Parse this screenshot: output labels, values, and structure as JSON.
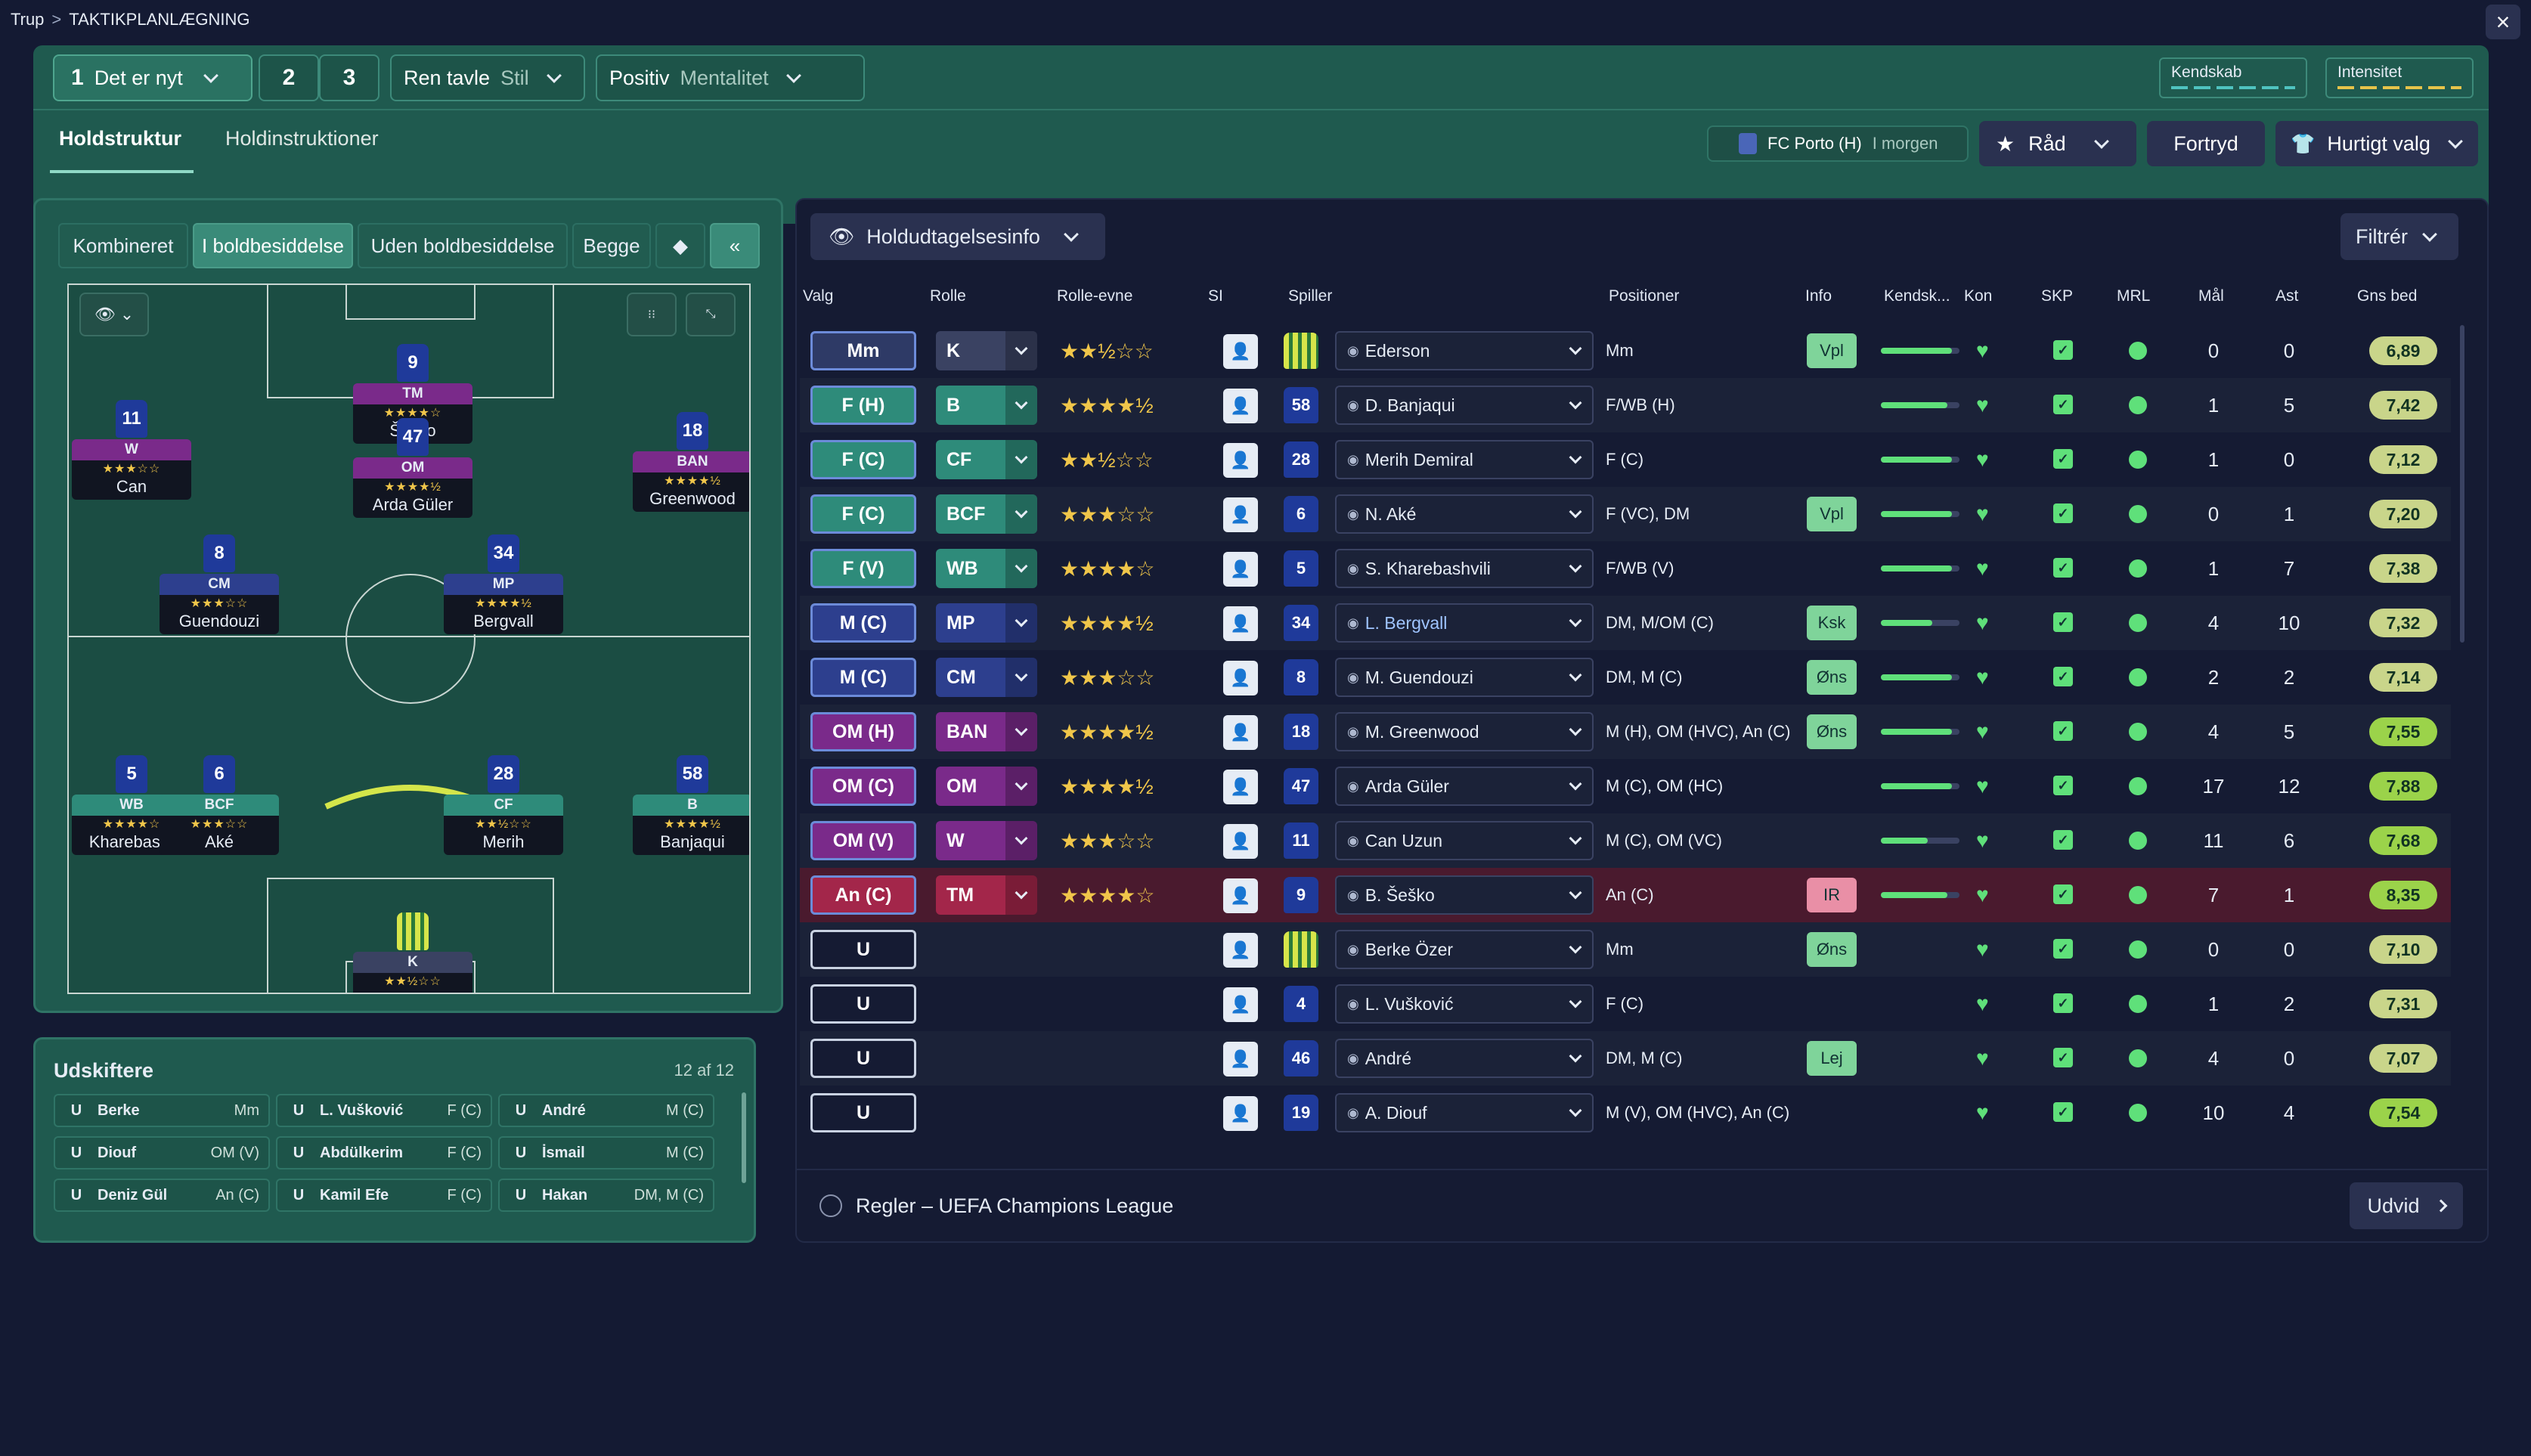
{
  "breadcrumb": {
    "root": "Trup",
    "current": "TAKTIKPLANLÆGNING"
  },
  "tactic": {
    "slot1_num": "1",
    "slot1_label": "Det er nyt",
    "slot2": "2",
    "slot3": "3",
    "style_value": "Ren tavle",
    "style_label": "Stil",
    "mentality_value": "Positiv",
    "mentality_label": "Mentalitet",
    "familiarity_label": "Kendskab",
    "intensity_label": "Intensitet",
    "colors": {
      "familiarity": "#4fc3c0",
      "intensity": "#e6c34a"
    }
  },
  "tabs": {
    "structure": "Holdstruktur",
    "instructions": "Holdinstruktioner"
  },
  "next_match": {
    "opponent": "FC Porto (H)",
    "when": "I morgen"
  },
  "actions": {
    "advice": "Råd",
    "undo": "Fortryd",
    "quick": "Hurtigt valg"
  },
  "view_modes": [
    "Kombineret",
    "I boldbesiddelse",
    "Uden boldbesiddelse",
    "Begge"
  ],
  "pitch_players": [
    {
      "num": "9",
      "role": "TM",
      "stars": "★★★★☆",
      "name": "Šeško",
      "color": "#7a2a8a"
    },
    {
      "num": "11",
      "role": "W",
      "stars": "★★★☆☆",
      "name": "Can",
      "color": "#7a2a8a"
    },
    {
      "num": "47",
      "role": "OM",
      "stars": "★★★★½",
      "name": "Arda Güler",
      "color": "#7a2a8a"
    },
    {
      "num": "18",
      "role": "BAN",
      "stars": "★★★★½",
      "name": "Greenwood",
      "color": "#7a2a8a"
    },
    {
      "num": "8",
      "role": "CM",
      "stars": "★★★☆☆",
      "name": "Guendouzi",
      "color": "#2d3f8e"
    },
    {
      "num": "34",
      "role": "MP",
      "stars": "★★★★½",
      "name": "Bergvall",
      "color": "#2d3f8e"
    },
    {
      "num": "5",
      "role": "WB",
      "stars": "★★★★☆",
      "name": "Kharebas...",
      "color": "#2e8b7a"
    },
    {
      "num": "6",
      "role": "BCF",
      "stars": "★★★☆☆",
      "name": "Aké",
      "color": "#2e8b7a"
    },
    {
      "num": "28",
      "role": "CF",
      "stars": "★★½☆☆",
      "name": "Merih",
      "color": "#2e8b7a"
    },
    {
      "num": "58",
      "role": "B",
      "stars": "★★★★½",
      "name": "Banjaqui",
      "color": "#2e8b7a"
    },
    {
      "num": "",
      "role": "K",
      "stars": "★★½☆☆",
      "name": "Ederson",
      "color": "#3a4262"
    }
  ],
  "subs": {
    "title": "Udskiftere",
    "count": "12 af 12",
    "items": [
      {
        "pos": "U",
        "name": "Berke",
        "role": "Mm"
      },
      {
        "pos": "U",
        "name": "L. Vušković",
        "role": "F (C)"
      },
      {
        "pos": "U",
        "name": "André",
        "role": "M (C)"
      },
      {
        "pos": "U",
        "name": "Diouf",
        "role": "OM (V)"
      },
      {
        "pos": "U",
        "name": "Abdülkerim",
        "role": "F (C)"
      },
      {
        "pos": "U",
        "name": "İsmail",
        "role": "M (C)"
      },
      {
        "pos": "U",
        "name": "Deniz Gül",
        "role": "An (C)"
      },
      {
        "pos": "U",
        "name": "Kamil Efe",
        "role": "F (C)"
      },
      {
        "pos": "U",
        "name": "Hakan",
        "role": "DM, M (C)"
      }
    ]
  },
  "table": {
    "view_label": "Holdudtagelsesinfo",
    "filter_label": "Filtrér",
    "headers": [
      "Valg",
      "Rolle",
      "Rolle-evne",
      "SI",
      "Spiller",
      "Positioner",
      "Info",
      "Kendsk...",
      "Kon",
      "SKP",
      "MRL",
      "Mål",
      "Ast",
      "Gns bed"
    ],
    "rows": [
      {
        "pos": "Mm",
        "role": "K",
        "stars": "★★½☆☆",
        "num": "",
        "name": "Ederson",
        "positions": "Mm",
        "info": "Vpl",
        "fam": 0.9,
        "goals": "0",
        "assists": "0",
        "rating": "6,89",
        "pcol": "#2e3a66",
        "rcol": "#3a4262"
      },
      {
        "pos": "F (H)",
        "role": "B",
        "stars": "★★★★½",
        "num": "58",
        "name": "D. Banjaqui",
        "positions": "F/WB (H)",
        "info": "",
        "fam": 0.85,
        "goals": "1",
        "assists": "5",
        "rating": "7,42",
        "pcol": "#2e8b7a",
        "rcol": "#2e8b7a"
      },
      {
        "pos": "F (C)",
        "role": "CF",
        "stars": "★★½☆☆",
        "num": "28",
        "name": "Merih Demiral",
        "positions": "F (C)",
        "info": "",
        "fam": 0.9,
        "goals": "1",
        "assists": "0",
        "rating": "7,12",
        "pcol": "#2e8b7a",
        "rcol": "#2e8b7a"
      },
      {
        "pos": "F (C)",
        "role": "BCF",
        "stars": "★★★☆☆",
        "num": "6",
        "name": "N. Aké",
        "positions": "F (VC), DM",
        "info": "Vpl",
        "fam": 0.9,
        "goals": "0",
        "assists": "1",
        "rating": "7,20",
        "pcol": "#2e8b7a",
        "rcol": "#2e8b7a"
      },
      {
        "pos": "F (V)",
        "role": "WB",
        "stars": "★★★★☆",
        "num": "5",
        "name": "S. Kharebashvili",
        "positions": "F/WB (V)",
        "info": "",
        "fam": 0.9,
        "goals": "1",
        "assists": "7",
        "rating": "7,38",
        "pcol": "#2e8b7a",
        "rcol": "#2e8b7a"
      },
      {
        "pos": "M (C)",
        "role": "MP",
        "stars": "★★★★½",
        "num": "34",
        "name": "L. Bergvall",
        "positions": "DM, M/OM (C)",
        "info": "Ksk",
        "fam": 0.65,
        "goals": "4",
        "assists": "10",
        "rating": "7,32",
        "pcol": "#2d3f8e",
        "rcol": "#2d3f8e"
      },
      {
        "pos": "M (C)",
        "role": "CM",
        "stars": "★★★☆☆",
        "num": "8",
        "name": "M. Guendouzi",
        "positions": "DM, M (C)",
        "info": "Øns",
        "fam": 0.9,
        "goals": "2",
        "assists": "2",
        "rating": "7,14",
        "pcol": "#2d3f8e",
        "rcol": "#2d3f8e"
      },
      {
        "pos": "OM (H)",
        "role": "BAN",
        "stars": "★★★★½",
        "num": "18",
        "name": "M. Greenwood",
        "positions": "M (H), OM (HVC), An (C)",
        "info": "Øns",
        "fam": 0.9,
        "goals": "4",
        "assists": "5",
        "rating": "7,55",
        "pcol": "#7a2a8a",
        "rcol": "#7a2a8a"
      },
      {
        "pos": "OM (C)",
        "role": "OM",
        "stars": "★★★★½",
        "num": "47",
        "name": "Arda Güler",
        "positions": "M (C), OM (HC)",
        "info": "",
        "fam": 0.9,
        "goals": "17",
        "assists": "12",
        "rating": "7,88",
        "pcol": "#7a2a8a",
        "rcol": "#7a2a8a"
      },
      {
        "pos": "OM (V)",
        "role": "W",
        "stars": "★★★☆☆",
        "num": "11",
        "name": "Can Uzun",
        "positions": "M (C), OM (VC)",
        "info": "",
        "fam": 0.6,
        "goals": "11",
        "assists": "6",
        "rating": "7,68",
        "pcol": "#7a2a8a",
        "rcol": "#7a2a8a"
      },
      {
        "pos": "An (C)",
        "role": "TM",
        "stars": "★★★★☆",
        "num": "9",
        "name": "B. Šeško",
        "positions": "An (C)",
        "info": "IR",
        "fam": 0.85,
        "goals": "7",
        "assists": "1",
        "rating": "8,35",
        "pcol": "#a3264a",
        "rcol": "#a3264a"
      },
      {
        "pos": "U",
        "role": "",
        "stars": "",
        "num": "",
        "name": "Berke Özer",
        "positions": "Mm",
        "info": "Øns",
        "fam": 0,
        "goals": "0",
        "assists": "0",
        "rating": "7,10",
        "pcol": "#151b33",
        "rcol": ""
      },
      {
        "pos": "U",
        "role": "",
        "stars": "",
        "num": "4",
        "name": "L. Vušković",
        "positions": "F (C)",
        "info": "",
        "fam": 0,
        "goals": "1",
        "assists": "2",
        "rating": "7,31",
        "pcol": "#151b33",
        "rcol": ""
      },
      {
        "pos": "U",
        "role": "",
        "stars": "",
        "num": "46",
        "name": "André",
        "positions": "DM, M (C)",
        "info": "Lej",
        "fam": 0,
        "goals": "4",
        "assists": "0",
        "rating": "7,07",
        "pcol": "#151b33",
        "rcol": ""
      },
      {
        "pos": "U",
        "role": "",
        "stars": "",
        "num": "19",
        "name": "A. Diouf",
        "positions": "M (V), OM (HVC), An (C)",
        "info": "",
        "fam": 0,
        "goals": "10",
        "assists": "4",
        "rating": "7,54",
        "pcol": "#151b33",
        "rcol": ""
      }
    ]
  },
  "footer": {
    "rules": "Regler – UEFA Champions League",
    "expand": "Udvid"
  }
}
